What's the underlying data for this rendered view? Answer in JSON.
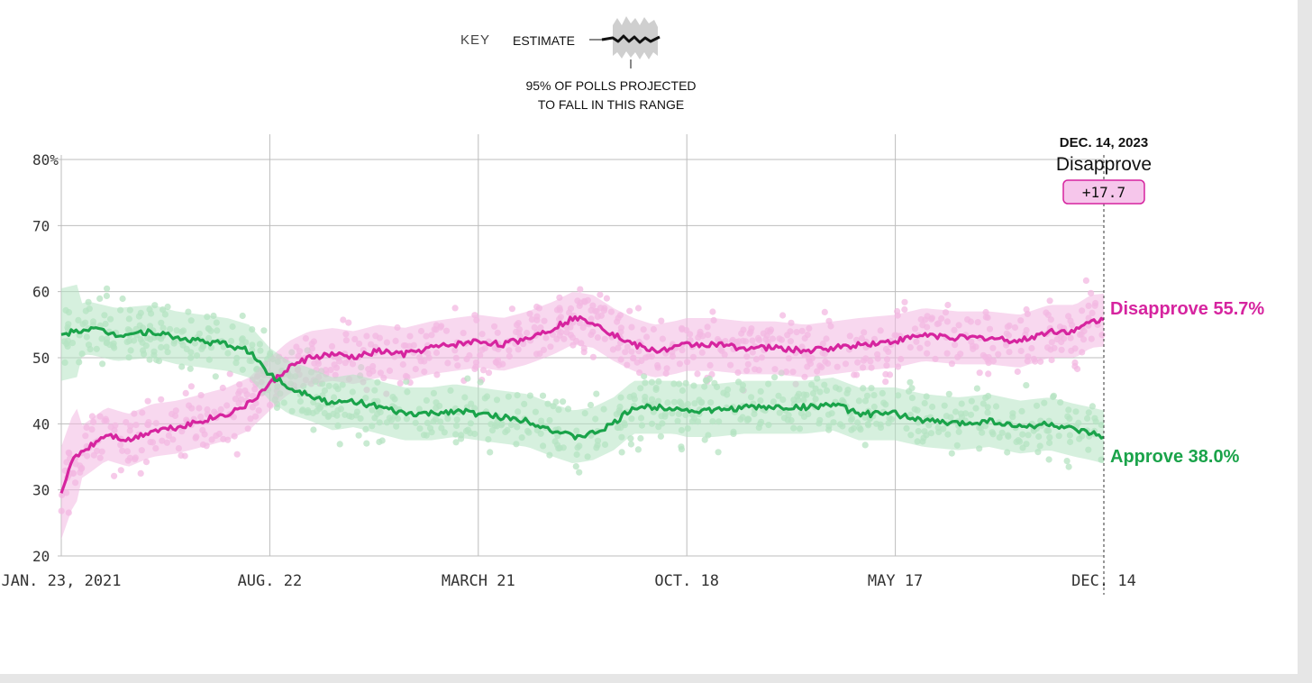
{
  "key": {
    "label": "KEY",
    "estimate_label": "ESTIMATE",
    "range_label_line1": "95% OF POLLS PROJECTED",
    "range_label_line2": "TO FALL IN THIS RANGE"
  },
  "callout": {
    "date": "DEC. 14, 2023",
    "series": "Disapprove",
    "margin": "+17.7"
  },
  "end_labels": {
    "disapprove": "Disapprove 55.7%",
    "approve": "Approve 38.0%"
  },
  "colors": {
    "disapprove": "#d6249f",
    "disapprove_light": "#f3b8e2",
    "approve": "#1aa34a",
    "approve_light": "#b5e3c2",
    "grid": "#bdbdbd",
    "axis_text": "#333333"
  },
  "chart_data": {
    "type": "line",
    "x_type": "date",
    "xlim": [
      "2021-01-23",
      "2023-12-14"
    ],
    "ylim": [
      20,
      80
    ],
    "y_ticks": [
      20,
      30,
      40,
      50,
      60,
      70,
      80
    ],
    "y_tick_labels": [
      "20",
      "30",
      "40",
      "50",
      "60",
      "70",
      "80%"
    ],
    "x_ticks": [
      "2021-01-23",
      "2021-08-22",
      "2022-03-21",
      "2022-10-18",
      "2023-05-17",
      "2023-12-14"
    ],
    "x_tick_labels": [
      "JAN. 23, 2021",
      "AUG. 22",
      "MARCH 21",
      "OCT. 18",
      "MAY 17",
      "DEC. 14"
    ],
    "grid": true,
    "series": [
      {
        "name": "Disapprove",
        "x": [
          "2021-01-23",
          "2021-02-05",
          "2021-02-20",
          "2021-03-10",
          "2021-04-01",
          "2021-04-25",
          "2021-05-20",
          "2021-06-15",
          "2021-07-10",
          "2021-08-01",
          "2021-08-22",
          "2021-09-10",
          "2021-10-01",
          "2021-10-25",
          "2021-11-15",
          "2021-12-10",
          "2022-01-05",
          "2022-02-01",
          "2022-02-25",
          "2022-03-21",
          "2022-04-15",
          "2022-05-10",
          "2022-06-05",
          "2022-06-25",
          "2022-07-15",
          "2022-08-05",
          "2022-08-25",
          "2022-09-15",
          "2022-10-05",
          "2022-10-18",
          "2022-11-15",
          "2022-12-15",
          "2023-01-15",
          "2023-02-15",
          "2023-03-15",
          "2023-04-10",
          "2023-05-17",
          "2023-06-15",
          "2023-07-20",
          "2023-08-20",
          "2023-09-20",
          "2023-10-20",
          "2023-11-15",
          "2023-12-01",
          "2023-12-14"
        ],
        "values": [
          29.5,
          35.0,
          36.5,
          38.5,
          37.5,
          39.0,
          39.5,
          40.5,
          41.5,
          43.0,
          46.0,
          48.5,
          50.0,
          50.5,
          50.0,
          51.0,
          50.5,
          51.5,
          52.0,
          52.5,
          52.0,
          53.0,
          54.5,
          56.0,
          55.5,
          53.5,
          52.0,
          51.0,
          51.5,
          52.0,
          52.0,
          51.5,
          51.5,
          51.0,
          51.5,
          52.0,
          52.5,
          53.5,
          53.0,
          53.0,
          52.5,
          54.0,
          54.0,
          55.5,
          55.7
        ]
      },
      {
        "name": "Approve",
        "x": [
          "2021-01-23",
          "2021-02-20",
          "2021-03-20",
          "2021-04-25",
          "2021-05-20",
          "2021-06-15",
          "2021-07-10",
          "2021-08-01",
          "2021-08-22",
          "2021-09-10",
          "2021-10-01",
          "2021-10-25",
          "2021-11-15",
          "2021-12-10",
          "2022-01-05",
          "2022-02-01",
          "2022-02-25",
          "2022-03-21",
          "2022-04-15",
          "2022-05-10",
          "2022-06-05",
          "2022-06-25",
          "2022-07-15",
          "2022-08-05",
          "2022-08-25",
          "2022-09-15",
          "2022-10-05",
          "2022-10-18",
          "2022-11-15",
          "2022-12-15",
          "2023-01-15",
          "2023-02-15",
          "2023-03-15",
          "2023-04-10",
          "2023-05-17",
          "2023-06-15",
          "2023-07-20",
          "2023-08-20",
          "2023-09-20",
          "2023-10-20",
          "2023-11-15",
          "2023-12-01",
          "2023-12-14"
        ],
        "values": [
          53.5,
          54.5,
          53.5,
          54.0,
          53.0,
          52.5,
          52.0,
          51.0,
          47.5,
          45.5,
          44.5,
          43.0,
          43.5,
          42.5,
          41.5,
          41.5,
          42.0,
          41.5,
          41.0,
          40.5,
          39.0,
          38.0,
          38.5,
          40.0,
          42.5,
          42.5,
          42.5,
          42.0,
          42.0,
          42.5,
          42.5,
          42.5,
          43.0,
          41.5,
          41.5,
          40.5,
          40.0,
          40.5,
          39.5,
          40.0,
          39.0,
          38.5,
          38.0
        ]
      }
    ]
  }
}
